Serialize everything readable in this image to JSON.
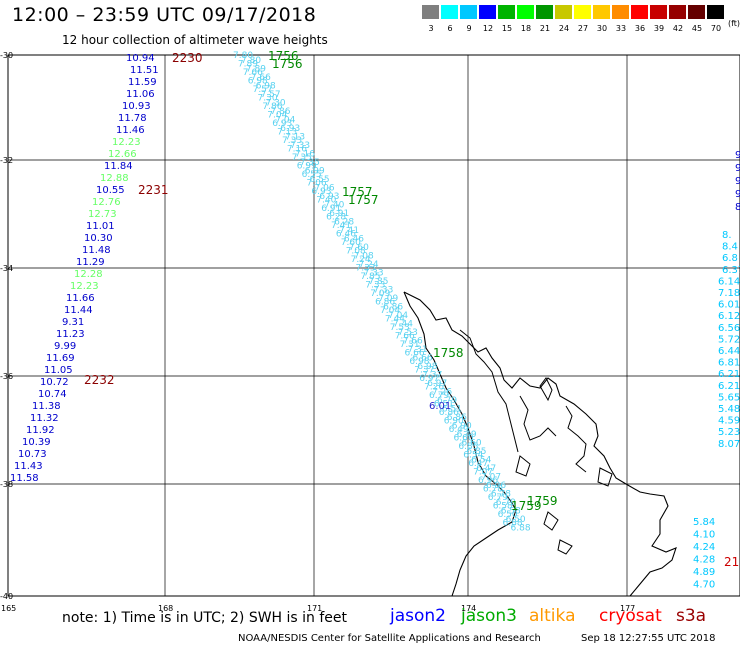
{
  "title": "12:00 – 23:59 UTC 09/17/2018",
  "subtitle": "12 hour collection of altimeter wave heights",
  "legend": {
    "labels": [
      "3",
      "6",
      "9",
      "12",
      "15",
      "18",
      "21",
      "24",
      "27",
      "30",
      "33",
      "36",
      "39",
      "42",
      "45",
      "70"
    ],
    "colors": [
      "#7f7f7f",
      "#00ffff",
      "#00c8ff",
      "#0000ff",
      "#00b400",
      "#00ff00",
      "#009600",
      "#c8c800",
      "#ffff00",
      "#ffc800",
      "#ff8c00",
      "#ff0000",
      "#c80000",
      "#960000",
      "#640000",
      "#000000"
    ],
    "unit": "(ft)"
  },
  "axes": {
    "lat_labels": [
      "-30",
      "-32",
      "-34",
      "-36",
      "-38",
      "-40"
    ],
    "lon_labels": [
      "165",
      "168",
      "171",
      "174",
      "177"
    ]
  },
  "time_labels": [
    {
      "text": "2230",
      "sat": "cryosat"
    },
    {
      "text": "2231",
      "sat": "cryosat"
    },
    {
      "text": "2232",
      "sat": "cryosat"
    },
    {
      "text": "1756",
      "sat": "jason3"
    },
    {
      "text": "1756",
      "sat": "jason3"
    },
    {
      "text": "1757",
      "sat": "jason3"
    },
    {
      "text": "1757",
      "sat": "jason3"
    },
    {
      "text": "1758",
      "sat": "jason3"
    },
    {
      "text": "1759",
      "sat": "jason3"
    },
    {
      "text": "1759",
      "sat": "jason3"
    },
    {
      "text": "21",
      "sat": "cryosat"
    }
  ],
  "west_track": [
    {
      "v": "10.94",
      "c": "#0000cc"
    },
    {
      "v": "11.51",
      "c": "#0000cc"
    },
    {
      "v": "11.59",
      "c": "#0000cc"
    },
    {
      "v": "11.06",
      "c": "#0000cc"
    },
    {
      "v": "10.93",
      "c": "#0000cc"
    },
    {
      "v": "11.78",
      "c": "#0000cc"
    },
    {
      "v": "11.46",
      "c": "#0000cc"
    },
    {
      "v": "12.23",
      "c": "#66ff66"
    },
    {
      "v": "12.66",
      "c": "#66ff66"
    },
    {
      "v": "11.84",
      "c": "#0000cc"
    },
    {
      "v": "12.88",
      "c": "#66ff66"
    },
    {
      "v": "10.55",
      "c": "#0000cc"
    },
    {
      "v": "12.76",
      "c": "#66ff66"
    },
    {
      "v": "12.73",
      "c": "#66ff66"
    },
    {
      "v": "11.01",
      "c": "#0000cc"
    },
    {
      "v": "10.30",
      "c": "#0000cc"
    },
    {
      "v": "11.48",
      "c": "#0000cc"
    },
    {
      "v": "11.29",
      "c": "#0000cc"
    },
    {
      "v": "12.28",
      "c": "#66ff66"
    },
    {
      "v": "12.23",
      "c": "#66ff66"
    },
    {
      "v": "11.66",
      "c": "#0000cc"
    },
    {
      "v": "11.44",
      "c": "#0000cc"
    },
    {
      "v": "9.31",
      "c": "#0000cc"
    },
    {
      "v": "11.23",
      "c": "#0000cc"
    },
    {
      "v": "9.99",
      "c": "#0000cc"
    },
    {
      "v": "11.69",
      "c": "#0000cc"
    },
    {
      "v": "11.05",
      "c": "#0000cc"
    },
    {
      "v": "10.72",
      "c": "#0000cc"
    },
    {
      "v": "10.74",
      "c": "#0000cc"
    },
    {
      "v": "11.38",
      "c": "#0000cc"
    },
    {
      "v": "11.32",
      "c": "#0000cc"
    },
    {
      "v": "11.92",
      "c": "#0000cc"
    },
    {
      "v": "10.39",
      "c": "#0000cc"
    },
    {
      "v": "10.73",
      "c": "#0000cc"
    },
    {
      "v": "11.43",
      "c": "#0000cc"
    },
    {
      "v": "11.58",
      "c": "#0000cc"
    }
  ],
  "east_track": [
    {
      "v": "8.",
      "c": "#00c8ff"
    },
    {
      "v": "8.4",
      "c": "#00c8ff"
    },
    {
      "v": "6.8",
      "c": "#00c8ff"
    },
    {
      "v": "6.37",
      "c": "#00c8ff"
    },
    {
      "v": "6.14",
      "c": "#00c8ff"
    },
    {
      "v": "7.18",
      "c": "#00c8ff"
    },
    {
      "v": "6.01",
      "c": "#00c8ff"
    },
    {
      "v": "6.12",
      "c": "#00c8ff"
    },
    {
      "v": "6.56",
      "c": "#00c8ff"
    },
    {
      "v": "5.72",
      "c": "#00c8ff"
    },
    {
      "v": "6.44",
      "c": "#00c8ff"
    },
    {
      "v": "6.81",
      "c": "#00c8ff"
    },
    {
      "v": "6.21",
      "c": "#00c8ff"
    },
    {
      "v": "6.21",
      "c": "#00c8ff"
    },
    {
      "v": "5.65",
      "c": "#00c8ff"
    },
    {
      "v": "5.48",
      "c": "#00c8ff"
    },
    {
      "v": "4.59",
      "c": "#00c8ff"
    },
    {
      "v": "5.23",
      "c": "#00c8ff"
    },
    {
      "v": "8.07",
      "c": "#00c8ff"
    }
  ],
  "east_track_top": [
    {
      "v": "9",
      "c": "#0000cc"
    },
    {
      "v": "9",
      "c": "#0000cc"
    },
    {
      "v": "9",
      "c": "#0000cc"
    },
    {
      "v": "9.",
      "c": "#0000cc"
    },
    {
      "v": "8.",
      "c": "#0000cc"
    }
  ],
  "east_track_bottom": [
    {
      "v": "5.84",
      "c": "#00c8ff"
    },
    {
      "v": "4.10",
      "c": "#00c8ff"
    },
    {
      "v": "4.24",
      "c": "#00c8ff"
    },
    {
      "v": "4.28",
      "c": "#00c8ff"
    },
    {
      "v": "4.89",
      "c": "#00c8ff"
    },
    {
      "v": "4.70",
      "c": "#00c8ff"
    }
  ],
  "diag_track": [
    {
      "v": "7.80"
    },
    {
      "v": "7.89"
    },
    {
      "v": "7.66"
    },
    {
      "v": "6.98"
    },
    {
      "v": "7.57"
    },
    {
      "v": "7.30"
    },
    {
      "v": "7.86"
    },
    {
      "v": "7.04"
    },
    {
      "v": "6.93"
    },
    {
      "v": "7.13"
    },
    {
      "v": "7.33"
    },
    {
      "v": "7.16"
    },
    {
      "v": "7.35"
    },
    {
      "v": "6.99"
    },
    {
      "v": "6.55"
    },
    {
      "v": "7.06"
    },
    {
      "v": "6.93"
    },
    {
      "v": "7.40"
    },
    {
      "v": "6.91"
    },
    {
      "v": "6.28"
    },
    {
      "v": "7.41"
    },
    {
      "v": "6.46"
    },
    {
      "v": "7.60"
    },
    {
      "v": "7.08"
    },
    {
      "v": "7.24"
    },
    {
      "v": "7.33"
    },
    {
      "v": "7.85"
    },
    {
      "v": "7.33"
    },
    {
      "v": "7.09"
    },
    {
      "v": "6.86"
    },
    {
      "v": "7.04"
    },
    {
      "v": "7.44"
    },
    {
      "v": "7.53"
    },
    {
      "v": "7.66"
    },
    {
      "v": "7.31"
    },
    {
      "v": "6.66"
    },
    {
      "v": "6.98"
    },
    {
      "v": "7.37"
    },
    {
      "v": "6.97"
    },
    {
      "v": "7.26"
    },
    {
      "v": "6.79"
    },
    {
      "v": "6.51"
    },
    {
      "v": "6.86"
    },
    {
      "v": "6.90"
    },
    {
      "v": "6.49"
    },
    {
      "v": "6.60"
    },
    {
      "v": "6.85"
    },
    {
      "v": "6.54"
    },
    {
      "v": "6.47"
    },
    {
      "v": "7.07"
    },
    {
      "v": "6.96"
    },
    {
      "v": "6.78"
    },
    {
      "v": "6.79"
    },
    {
      "v": "6.58"
    },
    {
      "v": "6.50"
    },
    {
      "v": "6.88"
    }
  ],
  "diag_track_color": "#5ad2f0",
  "diag_extra": "6.01",
  "footer": {
    "note": "note:  1) Time is in UTC;  2) SWH is in feet",
    "satellites": [
      {
        "name": "jason2",
        "color": "#0000ff"
      },
      {
        "name": "jason3",
        "color": "#00aa00"
      },
      {
        "name": "altika",
        "color": "#ff9900"
      },
      {
        "name": "cryosat",
        "color": "#ff0000"
      },
      {
        "name": "s3a",
        "color": "#990000"
      }
    ],
    "credit": "NOAA/NESDIS Center for Satellite Applications and Research",
    "stamp": "Sep 18 12:27:55 UTC 2018"
  }
}
